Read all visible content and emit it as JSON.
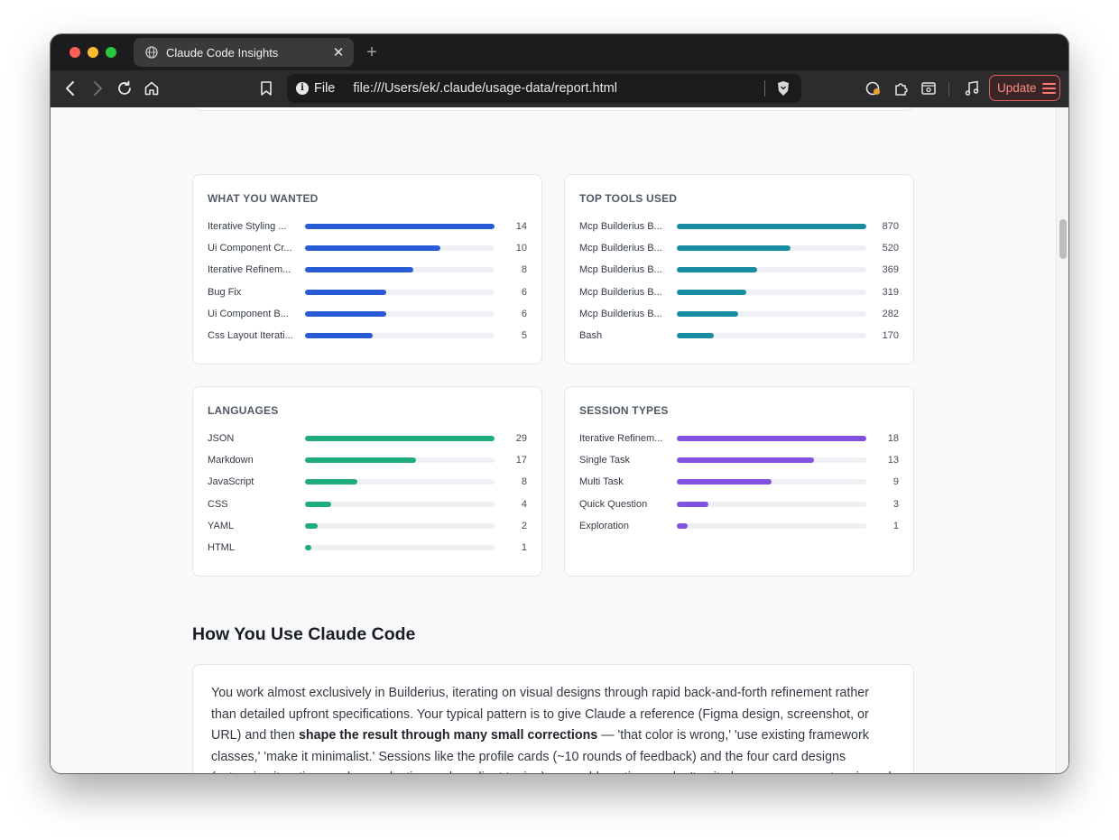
{
  "browser": {
    "tab_title": "Claude Code Insights",
    "url_scheme": "File",
    "url": "file:///Users/ek/.claude/usage-data/report.html",
    "update_label": "Update",
    "new_tab_symbol": "+",
    "close_symbol": "✕"
  },
  "cards": [
    {
      "title": "WHAT YOU WANTED",
      "color": "#2a5bd7",
      "max": 14,
      "rows": [
        {
          "label": "Iterative Styling ...",
          "value": 14
        },
        {
          "label": "Ui Component Cr...",
          "value": 10
        },
        {
          "label": "Iterative Refinem...",
          "value": 8
        },
        {
          "label": "Bug Fix",
          "value": 6
        },
        {
          "label": "Ui Component B...",
          "value": 6
        },
        {
          "label": "Css Layout Iterati...",
          "value": 5
        }
      ]
    },
    {
      "title": "TOP TOOLS USED",
      "color": "#1a8ca0",
      "max": 870,
      "rows": [
        {
          "label": "Mcp Builderius B...",
          "value": 870
        },
        {
          "label": "Mcp Builderius B...",
          "value": 520
        },
        {
          "label": "Mcp Builderius B...",
          "value": 369
        },
        {
          "label": "Mcp Builderius B...",
          "value": 319
        },
        {
          "label": "Mcp Builderius B...",
          "value": 282
        },
        {
          "label": "Bash",
          "value": 170
        }
      ]
    },
    {
      "title": "LANGUAGES",
      "color": "#1fad7c",
      "max": 29,
      "rows": [
        {
          "label": "JSON",
          "value": 29
        },
        {
          "label": "Markdown",
          "value": 17
        },
        {
          "label": "JavaScript",
          "value": 8
        },
        {
          "label": "CSS",
          "value": 4
        },
        {
          "label": "YAML",
          "value": 2
        },
        {
          "label": "HTML",
          "value": 1
        }
      ]
    },
    {
      "title": "SESSION TYPES",
      "color": "#8152e0",
      "max": 18,
      "rows": [
        {
          "label": "Iterative Refinem...",
          "value": 18
        },
        {
          "label": "Single Task",
          "value": 13
        },
        {
          "label": "Multi Task",
          "value": 9
        },
        {
          "label": "Quick Question",
          "value": 3
        },
        {
          "label": "Exploration",
          "value": 1
        }
      ]
    }
  ],
  "section": {
    "title": "How You Use Claude Code",
    "paragraph_part1": "You work almost exclusively in Builderius, iterating on visual designs through rapid back-and-forth refinement rather than detailed upfront specifications. Your typical pattern is to give Claude a reference (Figma design, screenshot, or URL) and then ",
    "paragraph_bold": "shape the result through many small corrections",
    "paragraph_part2": " — 'that color is wrong,' 'use existing framework classes,' 'make it minimalist.' Sessions like the profile cards (~10 rounds of feedback) and the four card designs (extensive iteration on class reduction and gradient tuning) are emblematic: you don't write long specs, you steer in real time. You clearly have strong opinions about framework-native styling, minimal custom"
  }
}
